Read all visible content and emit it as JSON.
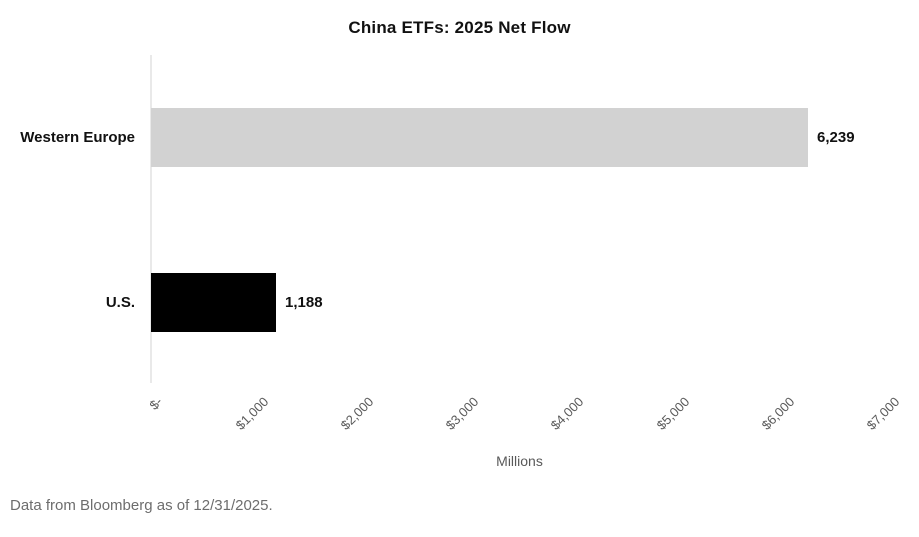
{
  "colors": {
    "bar_western_europe": "#d2d2d2",
    "bar_us": "#000000",
    "axis_line": "#e9e9e9",
    "tick_text": "#595959",
    "label_text": "#111111",
    "source_text": "#6d6d6d",
    "background": "#ffffff"
  },
  "chart_data": {
    "type": "bar",
    "orientation": "horizontal",
    "title": "China ETFs: 2025 Net Flow",
    "categories": [
      "Western Europe",
      "U.S."
    ],
    "values": [
      6239,
      1188
    ],
    "value_labels": [
      "6,239",
      "1,188"
    ],
    "bar_colors": [
      "#d2d2d2",
      "#000000"
    ],
    "xlabel": "Millions",
    "x_ticks": [
      "$-",
      "$1,000",
      "$2,000",
      "$3,000",
      "$4,000",
      "$5,000",
      "$6,000",
      "$7,000"
    ],
    "x_tick_values": [
      0,
      1000,
      2000,
      3000,
      4000,
      5000,
      6000,
      7000
    ],
    "xlim": [
      0,
      7000
    ],
    "grid": false,
    "legend": false,
    "source_note": "Data from Bloomberg as of 12/31/2025."
  }
}
